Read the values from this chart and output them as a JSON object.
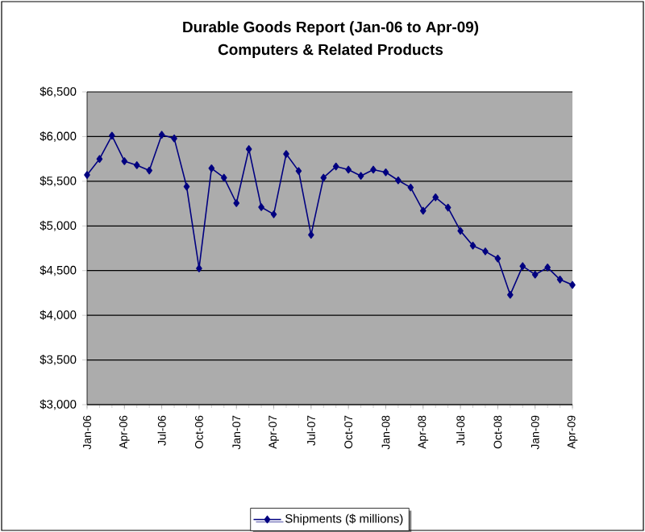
{
  "chart_data": {
    "type": "line",
    "title": "Durable Goods Report (Jan-06 to Apr-09)",
    "subtitle": "Computers & Related Products",
    "categories": [
      "Jan-06",
      null,
      null,
      "Apr-06",
      null,
      null,
      "Jul-06",
      null,
      null,
      "Oct-06",
      null,
      null,
      "Jan-07",
      null,
      null,
      "Apr-07",
      null,
      null,
      "Jul-07",
      null,
      null,
      "Oct-07",
      null,
      null,
      "Jan-08",
      null,
      null,
      "Apr-08",
      null,
      null,
      "Jul-08",
      null,
      null,
      "Oct-08",
      null,
      null,
      "Jan-09",
      null,
      null,
      "Apr-09"
    ],
    "series": [
      {
        "name": "Shipments ($ millions)",
        "color": "#000080",
        "values": [
          5570,
          5750,
          6010,
          5725,
          5680,
          5620,
          6020,
          5980,
          5440,
          4525,
          5645,
          5540,
          5255,
          5860,
          5210,
          5130,
          5805,
          5615,
          4900,
          5540,
          5665,
          5630,
          5560,
          5630,
          5600,
          5510,
          5430,
          5170,
          5320,
          5205,
          4945,
          4780,
          4715,
          4635,
          4230,
          4550,
          4455,
          4535,
          4400,
          4340
        ]
      }
    ],
    "ylim": [
      3000,
      6500
    ],
    "yticks": [
      {
        "value": 3000,
        "label": "$3,000"
      },
      {
        "value": 3500,
        "label": "$3,500"
      },
      {
        "value": 4000,
        "label": "$4,000"
      },
      {
        "value": 4500,
        "label": "$4,500"
      },
      {
        "value": 5000,
        "label": "$5,000"
      },
      {
        "value": 5500,
        "label": "$5,500"
      },
      {
        "value": 6000,
        "label": "$6,000"
      },
      {
        "value": 6500,
        "label": "$6,500"
      }
    ],
    "grid": "y",
    "legend": "bottom",
    "marker": "diamond",
    "line_style": "solid"
  }
}
